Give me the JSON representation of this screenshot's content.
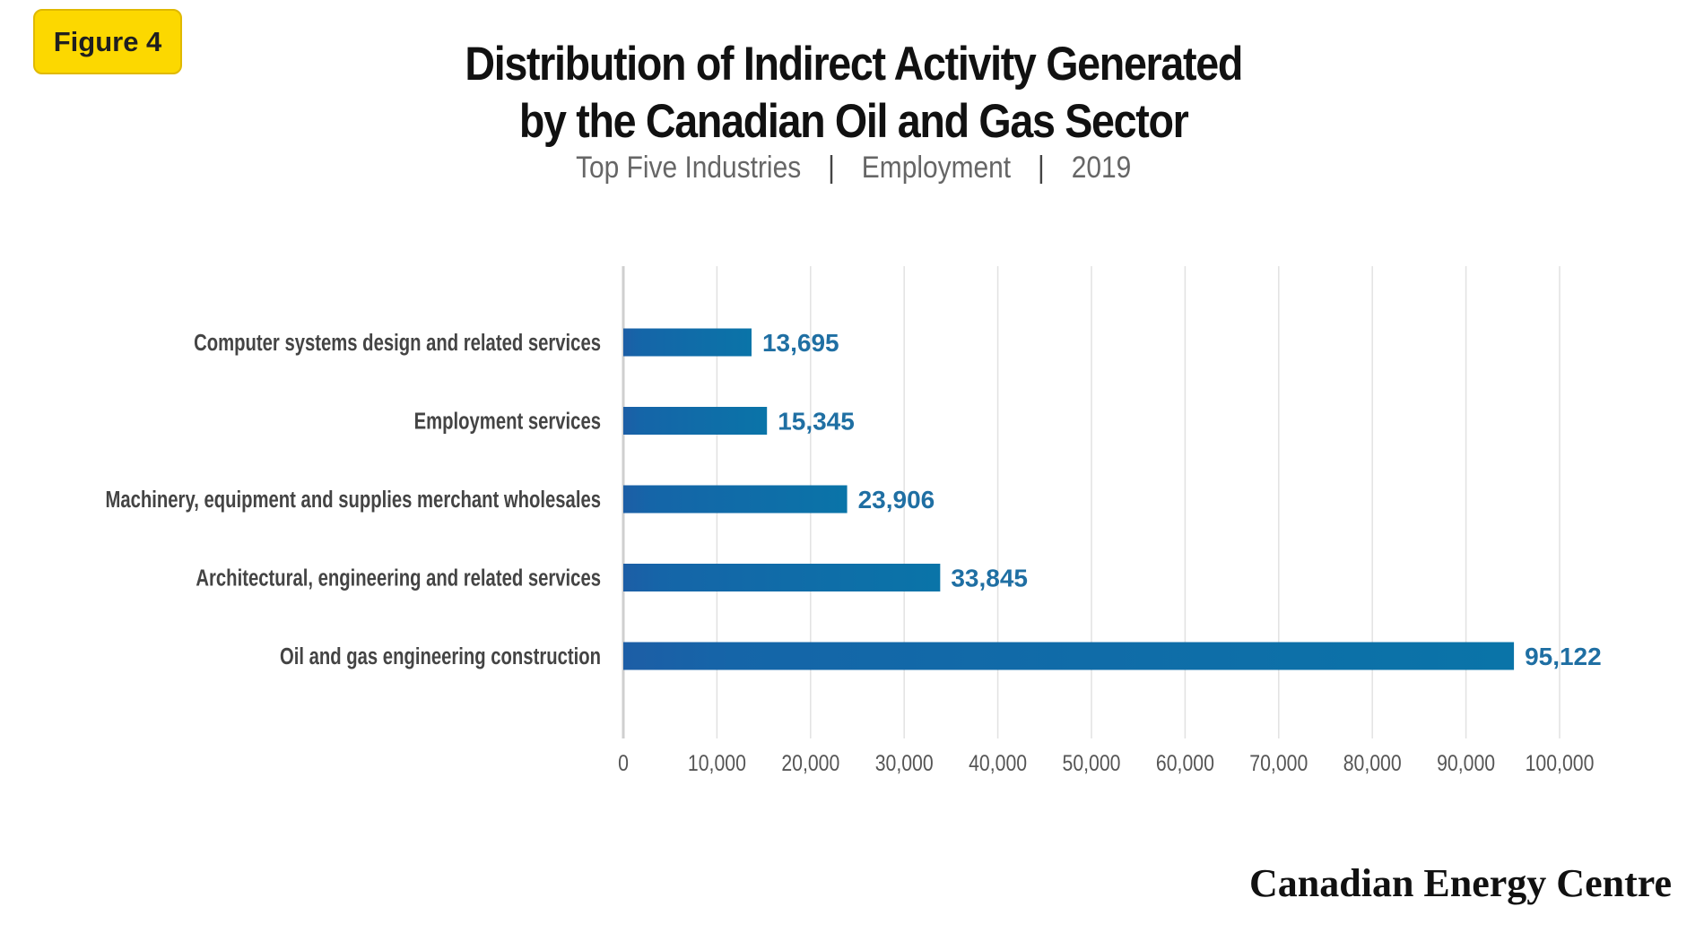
{
  "badge": {
    "label": "Figure 4"
  },
  "title": {
    "line1": "Distribution of Indirect Activity Generated",
    "line2": "by the Canadian Oil and Gas Sector"
  },
  "subtitle": {
    "part1": "Top Five Industries",
    "separator": "|",
    "part2": "Employment",
    "part3": "2019"
  },
  "brand": "Canadian Energy Centre",
  "colors": {
    "bar_start": "#1d5ea6",
    "bar_end": "#0a74a8",
    "value_label": "#1f6fa3",
    "category_label": "#444444",
    "tick_label": "#555555",
    "gridline": "#e2e2e2",
    "badge": "#fcd800"
  },
  "chart_data": {
    "type": "bar",
    "orientation": "horizontal",
    "categories": [
      "Computer systems design and related services",
      "Employment services",
      "Machinery, equipment and supplies merchant wholesales",
      "Architectural, engineering and related services",
      "Oil and gas engineering construction"
    ],
    "values": [
      13695,
      15345,
      23906,
      33845,
      95122
    ],
    "value_labels": [
      "13,695",
      "15,345",
      "23,906",
      "33,845",
      "95,122"
    ],
    "xlim": [
      0,
      100000
    ],
    "xticks": [
      0,
      10000,
      20000,
      30000,
      40000,
      50000,
      60000,
      70000,
      80000,
      90000,
      100000
    ],
    "xtick_labels": [
      "0",
      "10,000",
      "20,000",
      "30,000",
      "40,000",
      "50,000",
      "60,000",
      "70,000",
      "80,000",
      "90,000",
      "100,000"
    ],
    "grid": "vertical",
    "legend": "none"
  }
}
